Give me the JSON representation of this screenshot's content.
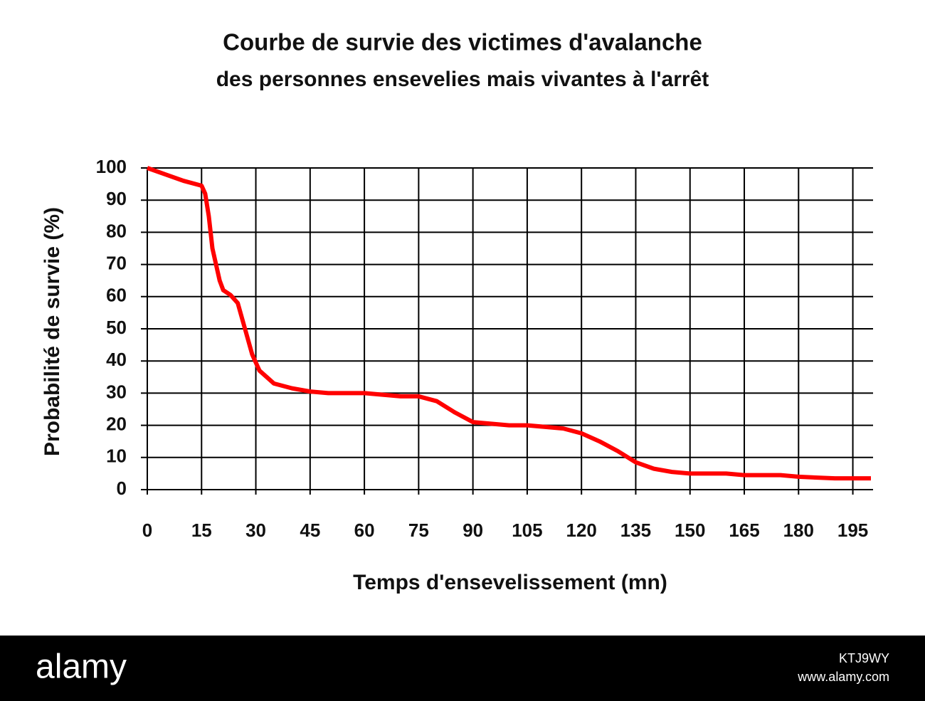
{
  "chart_data": {
    "type": "line",
    "title": "Courbe de survie des victimes d'avalanche",
    "subtitle": "des personnes ensevelies mais vivantes à l'arrêt",
    "x_label": "Temps d'ensevelissement (mn)",
    "y_label": "Probabilité de survie (%)",
    "x": [
      0,
      5,
      10,
      15,
      16,
      17,
      18,
      19,
      20,
      21,
      23,
      25,
      27,
      29,
      31,
      35,
      40,
      45,
      50,
      60,
      65,
      70,
      75,
      80,
      85,
      90,
      95,
      100,
      105,
      110,
      115,
      120,
      125,
      130,
      135,
      140,
      145,
      150,
      160,
      165,
      175,
      180,
      190,
      200
    ],
    "values": [
      100,
      98,
      96,
      94.5,
      92,
      85,
      75,
      70,
      65,
      62,
      60.5,
      58,
      50,
      42,
      37,
      33,
      31.5,
      30.5,
      30,
      30,
      29.5,
      29,
      29,
      27.5,
      24,
      21,
      20.5,
      20,
      20,
      19.5,
      19,
      17.5,
      15,
      12,
      8.5,
      6.5,
      5.5,
      5,
      5,
      4.5,
      4.5,
      4,
      3.5,
      3.5
    ],
    "color": "#ff0000",
    "xlim": [
      0,
      200
    ],
    "xticks": [
      0,
      15,
      30,
      45,
      60,
      75,
      90,
      105,
      120,
      135,
      150,
      165,
      180,
      195
    ],
    "ylim": [
      0,
      100
    ],
    "yticks": [
      0,
      10,
      20,
      30,
      40,
      50,
      60,
      70,
      80,
      90,
      100
    ],
    "grid": true
  },
  "footer": {
    "brand": "alamy",
    "image_id": "KTJ9WY",
    "site": "www.alamy.com"
  }
}
